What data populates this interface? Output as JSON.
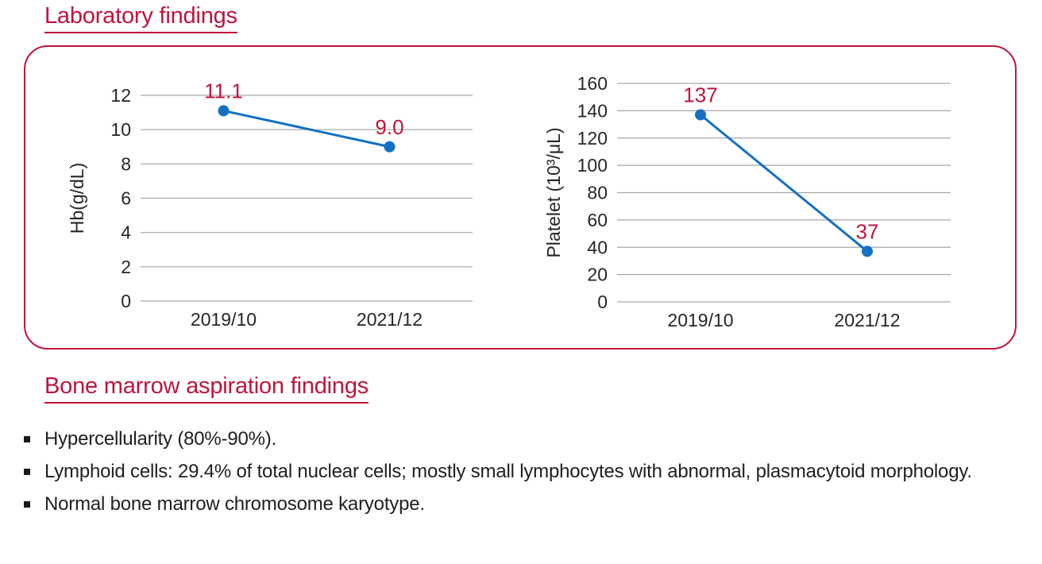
{
  "page": {
    "background": "#ffffff",
    "accent_color": "#c0143c",
    "text_color": "#1f1f1f",
    "grid_color": "#a6a6a6",
    "line_color": "#1470c2"
  },
  "lab_section": {
    "heading": "Laboratory findings"
  },
  "bone_marrow": {
    "heading": "Bone marrow aspiration findings",
    "bullets": [
      "Hypercellularity (80%-90%).",
      "Lymphoid cells: 29.4% of total nuclear cells; mostly small lymphocytes with abnormal, plasmacytoid morphology.",
      "Normal bone marrow chromosome karyotype."
    ]
  },
  "chart_data": [
    {
      "type": "line",
      "title": "",
      "categories": [
        "2019/10",
        "2021/12"
      ],
      "values": [
        11.1,
        9.0
      ],
      "value_labels": [
        "11.1",
        "9.0"
      ],
      "xlabel": "",
      "ylabel": "Hb(g/dL)",
      "ylim": [
        0,
        12
      ],
      "yticks": [
        0,
        2,
        4,
        6,
        8,
        10,
        12
      ],
      "grid": true,
      "legend": false,
      "line_color": "#1470c2",
      "label_color": "#c0143c",
      "grid_color": "#a6a6a6"
    },
    {
      "type": "line",
      "title": "",
      "categories": [
        "2019/10",
        "2021/12"
      ],
      "values": [
        137,
        37
      ],
      "value_labels": [
        "137",
        "37"
      ],
      "xlabel": "",
      "ylabel": "Platelet (10³/μL)",
      "ylim": [
        0,
        160
      ],
      "yticks": [
        0,
        20,
        40,
        60,
        80,
        100,
        120,
        140,
        160
      ],
      "grid": true,
      "legend": false,
      "line_color": "#1470c2",
      "label_color": "#c0143c",
      "grid_color": "#a6a6a6"
    }
  ]
}
